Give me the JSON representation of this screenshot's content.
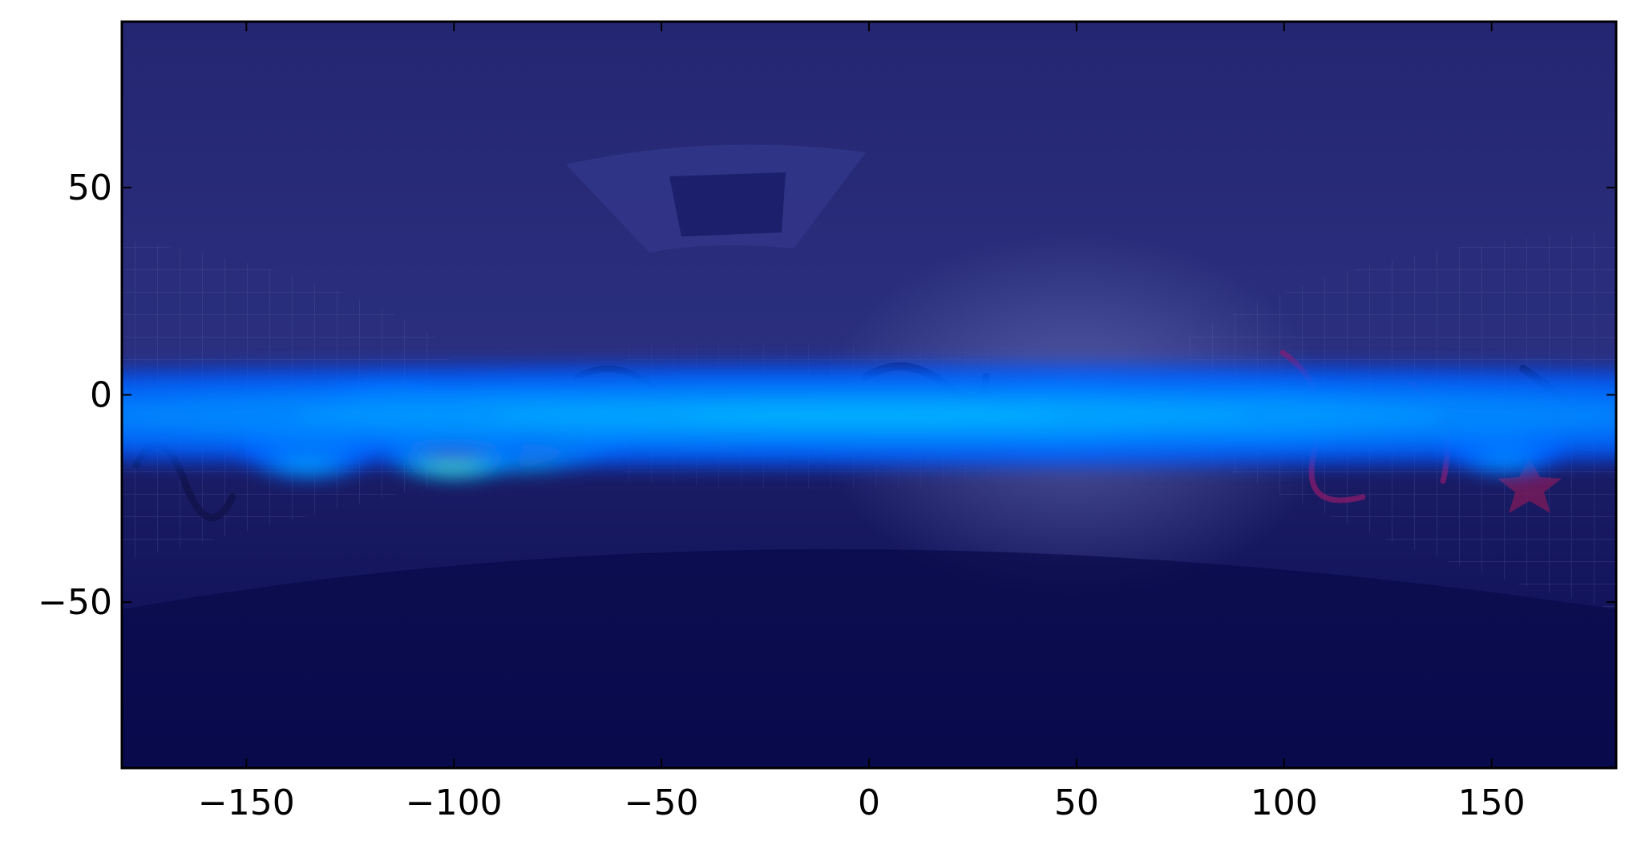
{
  "chart_data": {
    "type": "heatmap",
    "title": "",
    "xlabel": "",
    "ylabel": "",
    "xlim": [
      -180,
      180
    ],
    "ylim": [
      -90,
      90
    ],
    "x_ticks": [
      -150,
      -100,
      -50,
      0,
      50,
      100,
      150
    ],
    "y_ticks": [
      -50,
      0,
      50
    ],
    "x_tick_labels": [
      "−150",
      "−100",
      "−50",
      "0",
      "50",
      "100",
      "150"
    ],
    "y_tick_labels": [
      "−50",
      "0",
      "50"
    ],
    "colormap": "jet",
    "background": "equirectangular 360-degree photo of a graffiti-covered tiled pedestrian underpass, overlaid with a translucent heatmap",
    "hotspots": [
      {
        "x": -86,
        "y": -8,
        "sx": 14,
        "sy": 5,
        "intensity": 1.0
      },
      {
        "x": -100,
        "y": -13,
        "sx": 8,
        "sy": 3.5,
        "intensity": 0.78
      },
      {
        "x": -115,
        "y": -3,
        "sx": 9,
        "sy": 3.5,
        "intensity": 0.42
      },
      {
        "x": -135,
        "y": -12,
        "sx": 8,
        "sy": 4,
        "intensity": 0.36
      },
      {
        "x": 46,
        "y": -5,
        "sx": 10,
        "sy": 4,
        "intensity": 0.84
      },
      {
        "x": 98,
        "y": -5,
        "sx": 11,
        "sy": 3.5,
        "intensity": 0.6
      },
      {
        "x": 153,
        "y": -13,
        "sx": 7,
        "sy": 3,
        "intensity": 0.3
      },
      {
        "x": 0,
        "y": -5,
        "sx": 180,
        "sy": 6,
        "intensity": 0.16
      }
    ],
    "colors": {
      "background_dark": "#0a0b52",
      "tile_wall": "#3a3f8c",
      "graffiti_magenta": "#8a1a6a",
      "axis": "#000000"
    }
  }
}
